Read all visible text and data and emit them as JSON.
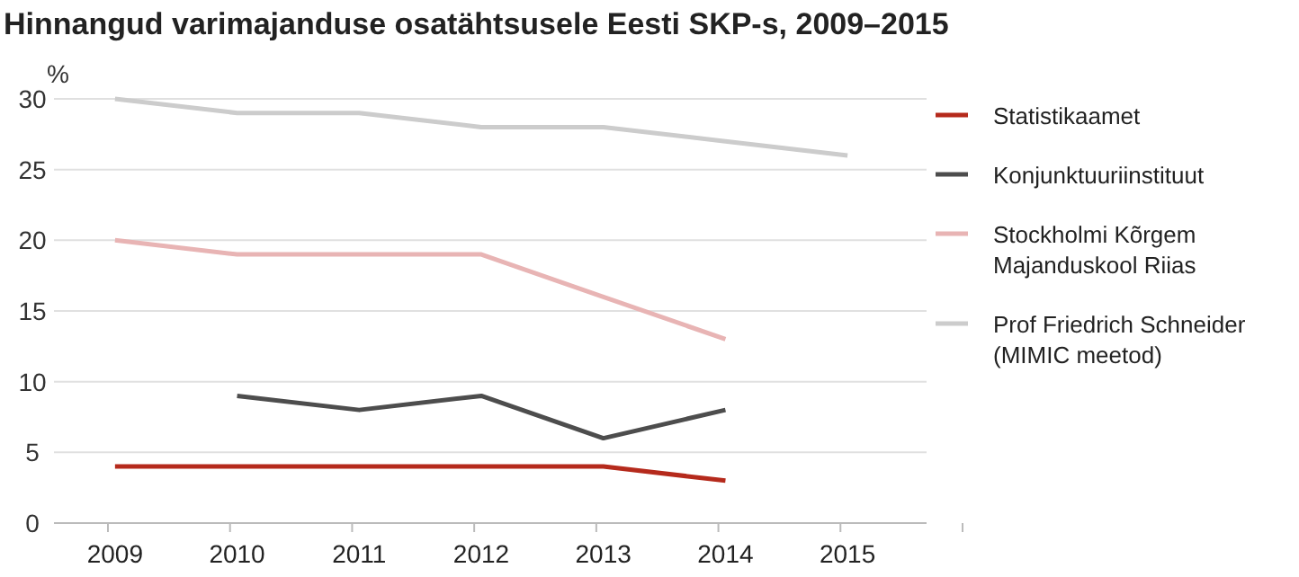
{
  "chart_data": {
    "type": "line",
    "title": "Hinnangud varimajanduse osatähtsusele Eesti SKP-s, 2009–2015",
    "ylabel": "%",
    "categories": [
      "2009",
      "2010",
      "2011",
      "2012",
      "2013",
      "2014",
      "2015"
    ],
    "series": [
      {
        "name": "Statistikaamet",
        "color": "#b52a1c",
        "values": [
          4,
          4,
          4,
          4,
          4,
          3,
          null
        ]
      },
      {
        "name": "Konjunktuuriinstituut",
        "color": "#4d4d4d",
        "values": [
          null,
          9,
          8,
          9,
          6,
          8,
          null
        ]
      },
      {
        "name": "Stockholmi Kõrgem Majanduskool Riias",
        "color": "#e8b4b4",
        "values": [
          20,
          19,
          19,
          19,
          16,
          13,
          null
        ]
      },
      {
        "name": "Prof Friedrich Schneider (MIMIC meetod)",
        "color": "#cccccc",
        "values": [
          30,
          29,
          29,
          28,
          28,
          27,
          26
        ]
      }
    ],
    "ylim": [
      0,
      30
    ],
    "yticks": [
      0,
      5,
      10,
      15,
      20,
      25,
      30
    ],
    "grid": "y",
    "legend": "right",
    "marker": "none",
    "line_style": "solid"
  }
}
